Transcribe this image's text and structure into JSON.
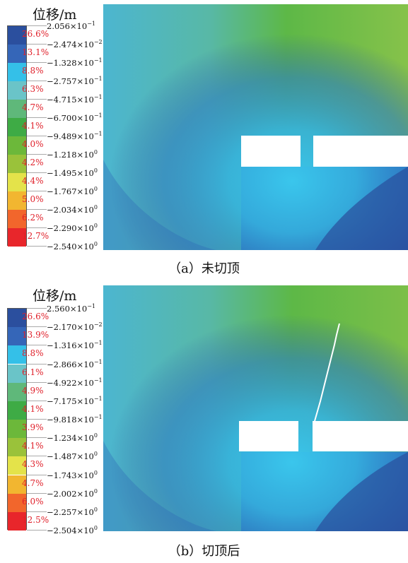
{
  "panels": [
    {
      "title": "位移/m",
      "caption": "（a）未切顶",
      "legend_percents": [
        "26.6%",
        "13.1%",
        "8.8%",
        "6.3%",
        "4.7%",
        "4.1%",
        "4.0%",
        "4.2%",
        "4.4%",
        "5.0%",
        "6.2%",
        "12.7%"
      ],
      "legend_values": [
        {
          "m": "2.056",
          "e": "−1"
        },
        {
          "m": "−2.474",
          "e": "−2"
        },
        {
          "m": "−1.328",
          "e": "−1"
        },
        {
          "m": "−2.757",
          "e": "−1"
        },
        {
          "m": "−4.715",
          "e": "−1"
        },
        {
          "m": "−6.700",
          "e": "−1"
        },
        {
          "m": "−9.489",
          "e": "−1"
        },
        {
          "m": "−1.218",
          "e": "0"
        },
        {
          "m": "−1.495",
          "e": "0"
        },
        {
          "m": "−1.767",
          "e": "0"
        },
        {
          "m": "−2.034",
          "e": "0"
        },
        {
          "m": "−2.290",
          "e": "0"
        },
        {
          "m": "−2.540",
          "e": "0"
        }
      ],
      "roof_cut": false
    },
    {
      "title": "位移/m",
      "caption": "（b）切顶后",
      "legend_percents": [
        "26.6%",
        "13.9%",
        "8.8%",
        "6.1%",
        "4.9%",
        "4.1%",
        "3.9%",
        "4.1%",
        "4.3%",
        "4.7%",
        "6.0%",
        "12.5%"
      ],
      "legend_values": [
        {
          "m": "2.560",
          "e": "−1"
        },
        {
          "m": "−2.170",
          "e": "−2"
        },
        {
          "m": "−1.316",
          "e": "−1"
        },
        {
          "m": "−2.866",
          "e": "−1"
        },
        {
          "m": "−4.922",
          "e": "−1"
        },
        {
          "m": "−7.175",
          "e": "−1"
        },
        {
          "m": "−9.818",
          "e": "−1"
        },
        {
          "m": "−1.234",
          "e": "0"
        },
        {
          "m": "−1.487",
          "e": "0"
        },
        {
          "m": "−1.743",
          "e": "0"
        },
        {
          "m": "−2.002",
          "e": "0"
        },
        {
          "m": "−2.257",
          "e": "0"
        },
        {
          "m": "−2.504",
          "e": "0"
        }
      ],
      "roof_cut": true
    }
  ],
  "legend_colors": [
    "#2b4f9e",
    "#3566b8",
    "#34c0e8",
    "#6ac4c8",
    "#5fb87a",
    "#3eab45",
    "#6cb83a",
    "#9ac23a",
    "#e4e34a",
    "#f2b630",
    "#f2662c",
    "#e8262b"
  ]
}
